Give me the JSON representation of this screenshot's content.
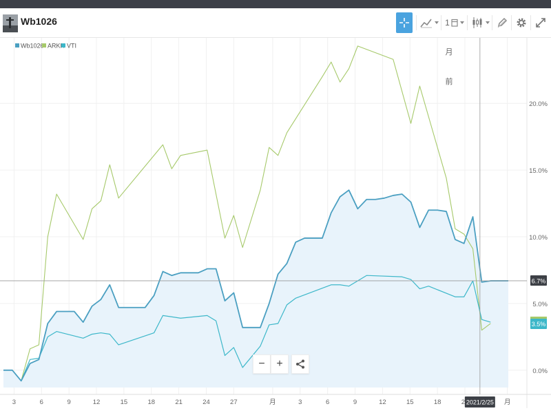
{
  "header": {
    "symbol": "Wb1026",
    "period": "1"
  },
  "colors": {
    "wb1026": "#4a9fc1",
    "arkk": "#a6c96a",
    "vti": "#3cb7c9",
    "area_fill": "#e8f3fb",
    "accent": "#4aa3df"
  },
  "chart_data": {
    "type": "line",
    "legend": [
      "Wb1026",
      "ARKK",
      "VTI"
    ],
    "legend_position": "top-left",
    "y_ticks": [
      "0.0%",
      "5.0%",
      "10.0%",
      "15.0%",
      "20.0%"
    ],
    "x_ticks": [
      "3",
      "6",
      "9",
      "12",
      "15",
      "18",
      "21",
      "24",
      "27",
      "月",
      "3",
      "6",
      "9",
      "12",
      "15",
      "18",
      "21",
      "月"
    ],
    "ylim": [
      -1.3,
      24.5
    ],
    "grid": true,
    "crosshair_label": "2021/2/25",
    "annotations": [
      "月",
      "前"
    ],
    "last_values": [
      "6.7%",
      "3.5%"
    ],
    "series": [
      {
        "name": "Wb1026",
        "values": [
          [
            0,
            0
          ],
          [
            1,
            0
          ],
          [
            2,
            -0.8
          ],
          [
            3,
            0.5
          ],
          [
            4,
            0.8
          ],
          [
            5,
            3.5
          ],
          [
            6,
            4.4
          ],
          [
            7,
            4.4
          ],
          [
            8,
            4.4
          ],
          [
            9,
            3.6
          ],
          [
            10,
            4.8
          ],
          [
            11,
            5.3
          ],
          [
            12,
            6.4
          ],
          [
            13,
            4.7
          ],
          [
            14,
            4.7
          ],
          [
            15,
            4.7
          ],
          [
            16,
            4.7
          ],
          [
            17,
            5.6
          ],
          [
            18,
            7.4
          ],
          [
            19,
            7.1
          ],
          [
            20,
            7.3
          ],
          [
            21,
            7.3
          ],
          [
            22,
            7.3
          ],
          [
            23,
            7.6
          ],
          [
            24,
            7.6
          ],
          [
            25,
            5.2
          ],
          [
            26,
            5.8
          ],
          [
            27,
            3.2
          ],
          [
            28,
            3.2
          ],
          [
            29,
            3.2
          ],
          [
            30,
            5.0
          ],
          [
            31,
            7.2
          ],
          [
            32,
            8.0
          ],
          [
            33,
            9.6
          ],
          [
            34,
            9.9
          ],
          [
            35,
            9.9
          ],
          [
            36,
            9.9
          ],
          [
            37,
            11.8
          ],
          [
            38,
            13.0
          ],
          [
            39,
            13.5
          ],
          [
            40,
            12.1
          ],
          [
            41,
            12.8
          ],
          [
            42,
            12.8
          ],
          [
            43,
            12.9
          ],
          [
            44,
            13.1
          ],
          [
            45,
            13.2
          ],
          [
            46,
            12.6
          ],
          [
            47,
            10.7
          ],
          [
            48,
            12.0
          ],
          [
            49,
            12.0
          ],
          [
            50,
            11.9
          ],
          [
            51,
            9.8
          ],
          [
            52,
            9.5
          ],
          [
            53,
            11.5
          ],
          [
            54,
            6.6
          ],
          [
            55,
            6.7
          ],
          [
            56,
            6.7
          ],
          [
            57,
            6.7
          ]
        ]
      },
      {
        "name": "ARKK",
        "values": [
          [
            2,
            -0.8
          ],
          [
            3,
            1.6
          ],
          [
            4,
            1.9
          ],
          [
            5,
            10.0
          ],
          [
            6,
            13.2
          ],
          [
            9,
            9.8
          ],
          [
            10,
            12.1
          ],
          [
            11,
            12.7
          ],
          [
            12,
            15.4
          ],
          [
            13,
            12.9
          ],
          [
            18,
            16.9
          ],
          [
            19,
            15.1
          ],
          [
            20,
            16.1
          ],
          [
            23,
            16.5
          ],
          [
            25,
            9.9
          ],
          [
            26,
            11.6
          ],
          [
            27,
            9.2
          ],
          [
            29,
            13.5
          ],
          [
            30,
            16.7
          ],
          [
            31,
            16.1
          ],
          [
            32,
            17.8
          ],
          [
            36,
            22.0
          ],
          [
            37,
            23.1
          ],
          [
            38,
            21.6
          ],
          [
            39,
            22.6
          ],
          [
            40,
            24.3
          ],
          [
            44,
            23.3
          ],
          [
            46,
            18.5
          ],
          [
            47,
            21.3
          ],
          [
            50,
            14.4
          ],
          [
            51,
            10.6
          ],
          [
            52,
            10.2
          ],
          [
            53,
            9.1
          ],
          [
            54,
            3.0
          ],
          [
            55,
            3.5
          ]
        ]
      },
      {
        "name": "VTI",
        "values": [
          [
            2,
            -0.8
          ],
          [
            3,
            0.8
          ],
          [
            4,
            0.9
          ],
          [
            5,
            2.5
          ],
          [
            6,
            2.9
          ],
          [
            9,
            2.4
          ],
          [
            10,
            2.7
          ],
          [
            11,
            2.8
          ],
          [
            12,
            2.7
          ],
          [
            13,
            1.9
          ],
          [
            17,
            2.8
          ],
          [
            18,
            4.1
          ],
          [
            20,
            3.9
          ],
          [
            23,
            4.1
          ],
          [
            24,
            3.7
          ],
          [
            25,
            1.1
          ],
          [
            26,
            1.7
          ],
          [
            27,
            0.2
          ],
          [
            29,
            1.8
          ],
          [
            30,
            3.4
          ],
          [
            31,
            3.5
          ],
          [
            32,
            4.9
          ],
          [
            33,
            5.4
          ],
          [
            37,
            6.4
          ],
          [
            38,
            6.4
          ],
          [
            39,
            6.3
          ],
          [
            40,
            6.7
          ],
          [
            41,
            7.1
          ],
          [
            45,
            7.0
          ],
          [
            46,
            6.8
          ],
          [
            47,
            6.1
          ],
          [
            48,
            6.3
          ],
          [
            51,
            5.5
          ],
          [
            52,
            5.5
          ],
          [
            53,
            6.7
          ],
          [
            54,
            3.8
          ],
          [
            55,
            3.6
          ]
        ]
      }
    ]
  }
}
